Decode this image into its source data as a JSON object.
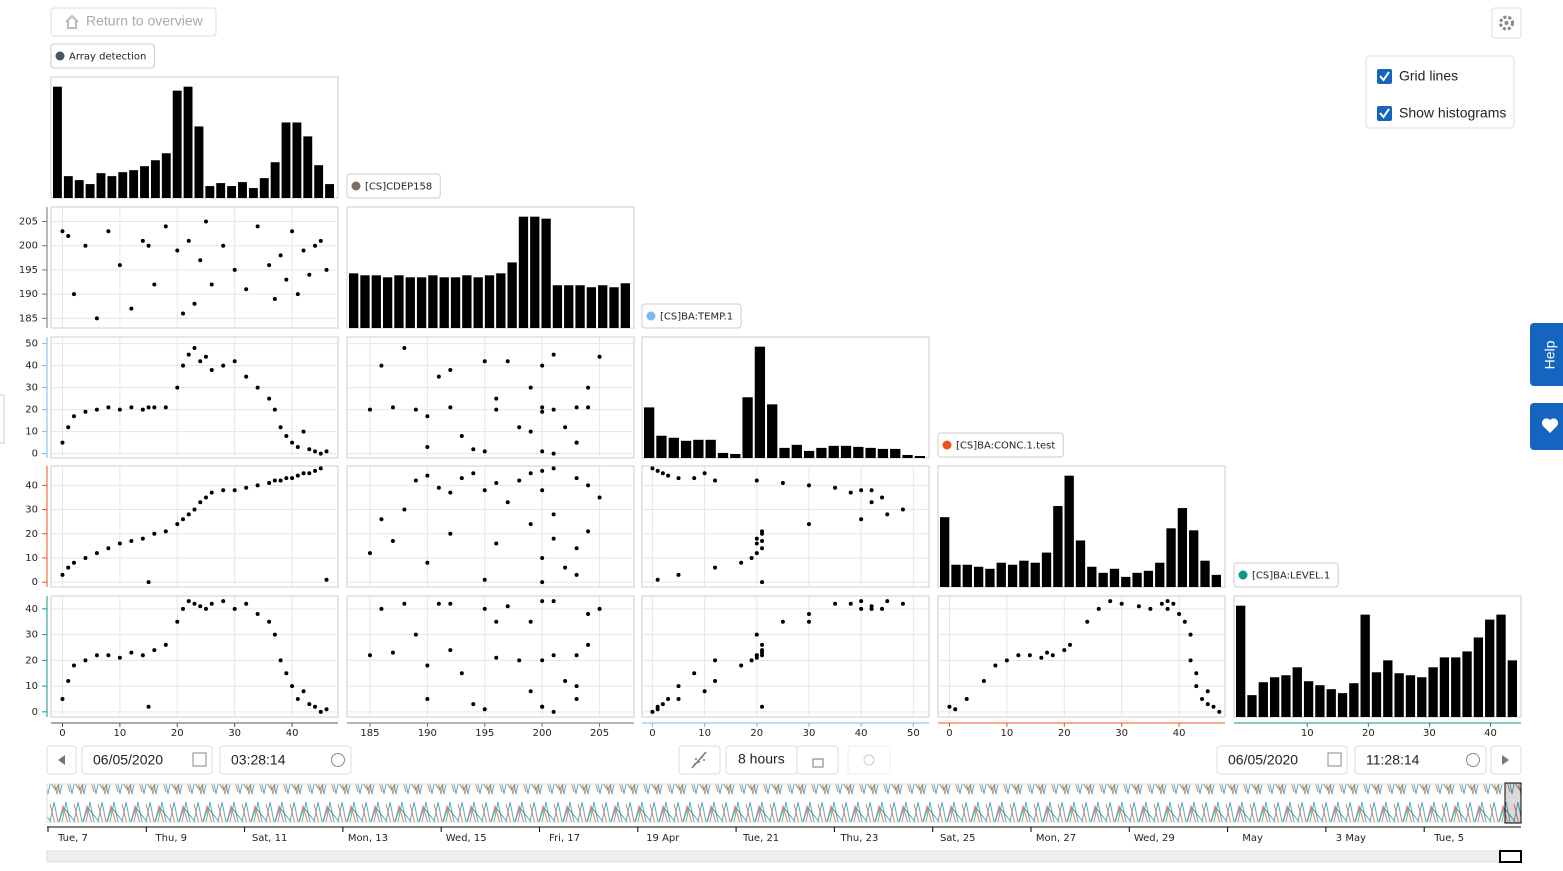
{
  "header": {
    "back_button": "Return to overview"
  },
  "settings": {
    "grid_lines": {
      "label": "Grid lines",
      "checked": true
    },
    "show_histograms": {
      "label": "Show histograms",
      "checked": true
    }
  },
  "help": "Help",
  "variables": [
    {
      "name": "Array detection",
      "color": "#4a5560",
      "range": [
        -2,
        48
      ],
      "ticks": [
        0,
        10,
        20,
        30,
        40
      ],
      "histogram": [
        112,
        22,
        18,
        14,
        25,
        22,
        26,
        28,
        32,
        38,
        45,
        108,
        112,
        72,
        12,
        15,
        12,
        16,
        10,
        20,
        36,
        76,
        76,
        62,
        33,
        14
      ],
      "values": [
        0,
        1,
        2,
        4,
        6,
        8,
        10,
        12,
        14,
        16,
        18,
        20,
        21,
        22,
        23,
        24,
        25,
        26,
        28,
        30,
        32,
        34,
        36,
        37,
        38,
        39,
        40,
        41,
        42,
        43,
        44,
        45,
        46,
        15
      ]
    },
    {
      "name": "[CS]CDEP158",
      "color": "#7d6e66",
      "range": [
        183,
        208
      ],
      "ticks": [
        185,
        190,
        195,
        200,
        205
      ],
      "histogram": [
        55,
        53,
        53,
        51,
        53,
        51,
        51,
        53,
        51,
        51,
        53,
        51,
        53,
        55,
        66,
        112,
        112,
        110,
        43,
        43,
        43,
        41,
        43,
        41,
        45
      ],
      "values": [
        203,
        202,
        190,
        200,
        185,
        203,
        196,
        187,
        201,
        192,
        204,
        199,
        186,
        201,
        188,
        197,
        205,
        192,
        200,
        195,
        191,
        204,
        196,
        189,
        198,
        193,
        203,
        190,
        199,
        194,
        200,
        201,
        195,
        200
      ]
    },
    {
      "name": "[CS]BA:TEMP.1",
      "color": "#7ab8ef",
      "range": [
        -2,
        53
      ],
      "ticks": [
        0,
        10,
        20,
        30,
        40,
        50
      ],
      "histogram": [
        50,
        22,
        20,
        17,
        18,
        18,
        5,
        4,
        60,
        110,
        53,
        10,
        13,
        7,
        10,
        12,
        12,
        11,
        10,
        9,
        9,
        3,
        2
      ],
      "values": [
        5,
        12,
        17,
        19,
        20,
        21,
        20,
        21,
        20,
        21,
        21,
        30,
        40,
        45,
        48,
        42,
        44,
        38,
        40,
        42,
        35,
        30,
        25,
        20,
        12,
        8,
        5,
        3,
        10,
        2,
        1,
        0,
        1,
        21
      ]
    },
    {
      "name": "[CS]BA:CONC.1.test",
      "color": "#f0501e",
      "range": [
        -2,
        48
      ],
      "ticks": [
        0,
        10,
        20,
        30,
        40
      ],
      "histogram": [
        69,
        22,
        22,
        20,
        18,
        24,
        22,
        26,
        24,
        34,
        80,
        110,
        46,
        20,
        14,
        18,
        10,
        14,
        16,
        24,
        58,
        78,
        56,
        26,
        12
      ],
      "values": [
        3,
        6,
        8,
        10,
        12,
        14,
        16,
        17,
        18,
        20,
        21,
        24,
        26,
        28,
        30,
        33,
        35,
        37,
        38,
        38,
        39,
        40,
        41,
        42,
        42,
        43,
        43,
        44,
        45,
        45,
        46,
        47,
        1,
        0
      ]
    },
    {
      "name": "[CS]BA:LEVEL.1",
      "color": "#139488",
      "range": [
        -2,
        45
      ],
      "ticks": [
        0,
        10,
        20,
        30,
        40
      ],
      "xticks": [
        10,
        20,
        30,
        40
      ],
      "histogram": [
        112,
        22,
        35,
        40,
        42,
        50,
        36,
        32,
        28,
        24,
        34,
        103,
        45,
        57,
        44,
        42,
        40,
        50,
        60,
        60,
        66,
        80,
        98,
        103,
        57
      ],
      "values": [
        5,
        12,
        18,
        20,
        22,
        22,
        21,
        23,
        22,
        24,
        26,
        35,
        40,
        43,
        42,
        41,
        40,
        42,
        43,
        40,
        42,
        38,
        35,
        30,
        20,
        15,
        10,
        5,
        8,
        3,
        2,
        0,
        1,
        2
      ]
    }
  ],
  "controls": {
    "start_date": "06/05/2020",
    "start_time": "03:28:14",
    "duration": "8 hours",
    "end_date": "06/05/2020",
    "end_time": "11:28:14"
  },
  "timeline": {
    "labels": [
      "Tue, 7",
      "Thu, 9",
      "Sat, 11",
      "Mon, 13",
      "Wed, 15",
      "Fri, 17",
      "19 Apr",
      "Tue, 21",
      "Thu, 23",
      "Sat, 25",
      "Mon, 27",
      "Wed, 29",
      "May",
      "3 May",
      "Tue, 5"
    ]
  }
}
